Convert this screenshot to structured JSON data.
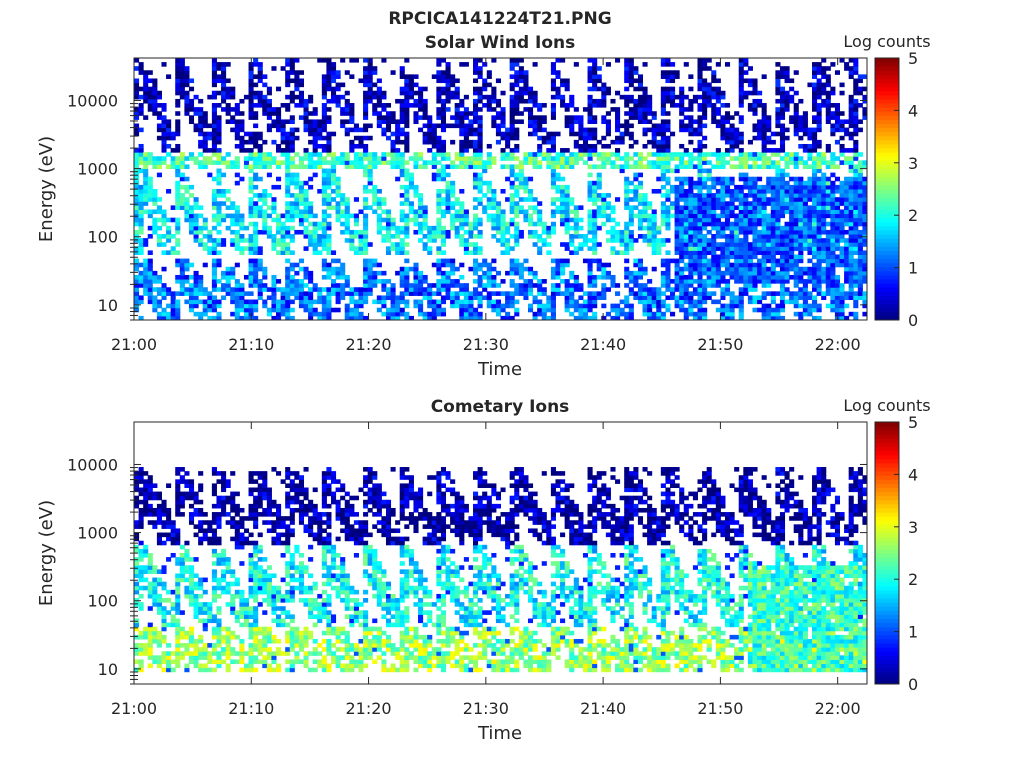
{
  "figure_title": "RPCICA141224T21.PNG",
  "colormap": [
    "#00007f",
    "#0000ff",
    "#007fff",
    "#00ffff",
    "#7fff7f",
    "#ffff00",
    "#ff7f00",
    "#ff0000",
    "#7f0000"
  ],
  "chart_data": [
    {
      "type": "heatmap",
      "title": "Solar Wind Ions",
      "xlabel": "Time",
      "ylabel": "Energy (eV)",
      "colorbar_label": "Log counts",
      "colorbar_ticks": [
        0,
        1,
        2,
        3,
        4,
        5
      ],
      "zlim": [
        0,
        5
      ],
      "x_ticks": [
        "21:00",
        "21:10",
        "21:20",
        "21:30",
        "21:40",
        "21:50",
        "22:00"
      ],
      "x_range_minutes": [
        0,
        62.5
      ],
      "y_scale": "log",
      "y_ticks": [
        "10",
        "100",
        "1000",
        "10000"
      ],
      "y_range_ev": [
        6,
        42000
      ],
      "pulse_period_min": 3.2,
      "bands": [
        {
          "energy_ev": [
            6,
            45
          ],
          "log_counts": 1.2
        },
        {
          "energy_ev": [
            50,
            900
          ],
          "log_counts": 1.8
        },
        {
          "energy_ev": [
            900,
            1600
          ],
          "log_counts": 2.2
        },
        {
          "energy_ev": [
            1600,
            40000
          ],
          "log_counts": 0.3
        }
      ],
      "late_block": {
        "start_min": 46,
        "energy_ev": [
          20,
          700
        ],
        "log_counts": 0.5
      }
    },
    {
      "type": "heatmap",
      "title": "Cometary Ions",
      "xlabel": "Time",
      "ylabel": "Energy (eV)",
      "colorbar_label": "Log counts",
      "colorbar_ticks": [
        0,
        1,
        2,
        3,
        4,
        5
      ],
      "zlim": [
        0,
        5
      ],
      "x_ticks": [
        "21:00",
        "21:10",
        "21:20",
        "21:30",
        "21:40",
        "21:50",
        "22:00"
      ],
      "x_range_minutes": [
        0,
        62.5
      ],
      "y_scale": "log",
      "y_ticks": [
        "10",
        "100",
        "1000",
        "10000"
      ],
      "y_range_ev": [
        6,
        42000
      ],
      "pulse_period_min": 3.2,
      "bands": [
        {
          "energy_ev": [
            8,
            40
          ],
          "log_counts": 2.6
        },
        {
          "energy_ev": [
            40,
            600
          ],
          "log_counts": 1.9
        },
        {
          "energy_ev": [
            600,
            8000
          ],
          "log_counts": 0.2
        }
      ],
      "late_block": {
        "start_min": 52,
        "energy_ev": [
          8,
          300
        ],
        "log_counts": 1.6
      }
    }
  ]
}
